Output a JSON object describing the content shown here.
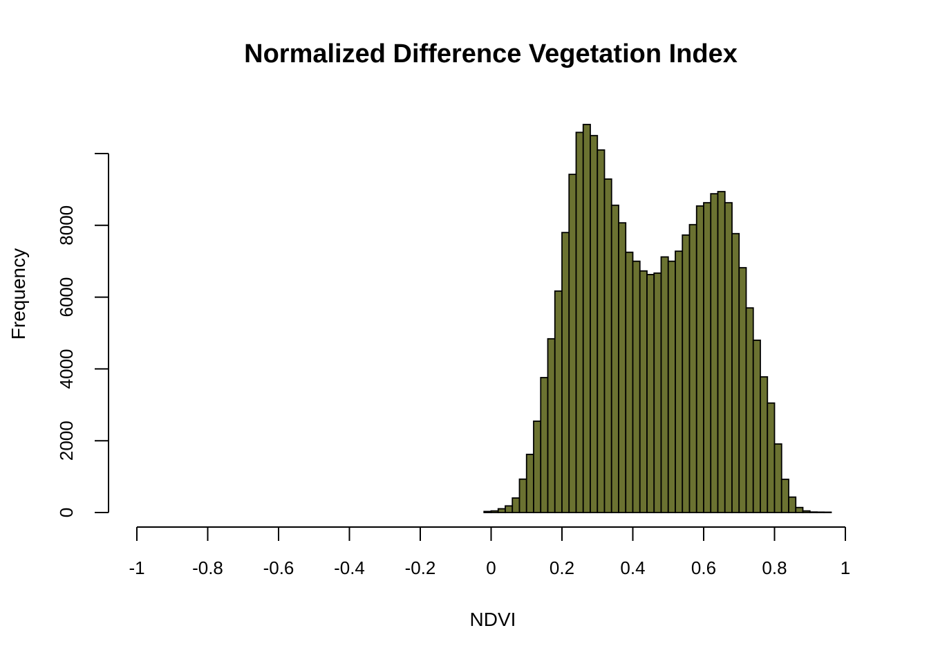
{
  "title": "Normalized Difference Vegetation Index",
  "xlabel": "NDVI",
  "ylabel": "Frequency",
  "chart_data": {
    "type": "bar",
    "subtype": "histogram",
    "title": "Normalized Difference Vegetation Index",
    "xlabel": "NDVI",
    "ylabel": "Frequency",
    "grid": false,
    "legend": "none",
    "xlim": [
      -1,
      1
    ],
    "ylim": [
      0,
      10000
    ],
    "bin_start": -0.02,
    "bin_width": 0.02,
    "frequencies": [
      30,
      45,
      105,
      185,
      405,
      930,
      1620,
      2545,
      3760,
      4840,
      6170,
      7800,
      9420,
      10590,
      10810,
      10500,
      10100,
      9290,
      8560,
      8070,
      7250,
      7000,
      6730,
      6630,
      6670,
      7120,
      7000,
      7280,
      7730,
      8020,
      8540,
      8630,
      8880,
      8940,
      8630,
      7770,
      6820,
      5700,
      4800,
      3780,
      3050,
      1910,
      925,
      430,
      140,
      45,
      15,
      12,
      10
    ],
    "x_ticks": [
      -1,
      -0.8,
      -0.6,
      -0.4,
      -0.2,
      0,
      0.2,
      0.4,
      0.6,
      0.8,
      1
    ],
    "x_tick_labels": [
      "-1",
      "-0.8",
      "-0.6",
      "-0.4",
      "-0.2",
      "0",
      "0.2",
      "0.4",
      "0.6",
      "0.8",
      "1"
    ],
    "y_ticks": [
      0,
      2000,
      4000,
      6000,
      8000,
      10000
    ],
    "y_tick_labels": [
      "0",
      "2000",
      "4000",
      "6000",
      "8000",
      ""
    ],
    "colors": {
      "bar_fill": "#6b7231",
      "bar_stroke": "#000000",
      "axis": "#000000",
      "background": "#ffffff"
    }
  }
}
